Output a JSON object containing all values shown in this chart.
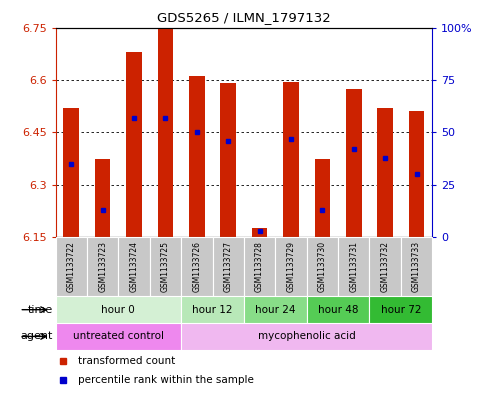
{
  "title": "GDS5265 / ILMN_1797132",
  "samples": [
    "GSM1133722",
    "GSM1133723",
    "GSM1133724",
    "GSM1133725",
    "GSM1133726",
    "GSM1133727",
    "GSM1133728",
    "GSM1133729",
    "GSM1133730",
    "GSM1133731",
    "GSM1133732",
    "GSM1133733"
  ],
  "bar_bottom": 6.15,
  "bar_tops": [
    6.52,
    6.375,
    6.68,
    6.745,
    6.61,
    6.59,
    6.178,
    6.595,
    6.375,
    6.575,
    6.52,
    6.51
  ],
  "percentile_ranks": [
    35,
    13,
    57,
    57,
    50,
    46,
    3,
    47,
    13,
    42,
    38,
    30
  ],
  "ylim_left": [
    6.15,
    6.75
  ],
  "ylim_right": [
    0,
    100
  ],
  "yticks_left": [
    6.15,
    6.3,
    6.45,
    6.6,
    6.75
  ],
  "ytick_labels_left": [
    "6.15",
    "6.3",
    "6.45",
    "6.6",
    "6.75"
  ],
  "yticks_right": [
    0,
    25,
    50,
    75,
    100
  ],
  "ytick_labels_right": [
    "0",
    "25",
    "50",
    "75",
    "100%"
  ],
  "bar_color": "#cc2200",
  "percentile_color": "#0000cc",
  "grid_color": "#000000",
  "time_groups": [
    {
      "label": "hour 0",
      "start": 0,
      "end": 4,
      "color": "#d4f0d4"
    },
    {
      "label": "hour 12",
      "start": 4,
      "end": 6,
      "color": "#b8e8b8"
    },
    {
      "label": "hour 24",
      "start": 6,
      "end": 8,
      "color": "#88dd88"
    },
    {
      "label": "hour 48",
      "start": 8,
      "end": 10,
      "color": "#55cc55"
    },
    {
      "label": "hour 72",
      "start": 10,
      "end": 12,
      "color": "#33bb33"
    }
  ],
  "agent_groups": [
    {
      "label": "untreated control",
      "start": 0,
      "end": 4,
      "color": "#ee88ee"
    },
    {
      "label": "mycophenolic acid",
      "start": 4,
      "end": 12,
      "color": "#f0b8f0"
    }
  ],
  "sample_bg_color": "#c8c8c8",
  "legend_items": [
    {
      "color": "#cc2200",
      "label": "transformed count"
    },
    {
      "color": "#0000cc",
      "label": "percentile rank within the sample"
    }
  ],
  "time_label": "time",
  "agent_label": "agent",
  "bar_width": 0.5
}
